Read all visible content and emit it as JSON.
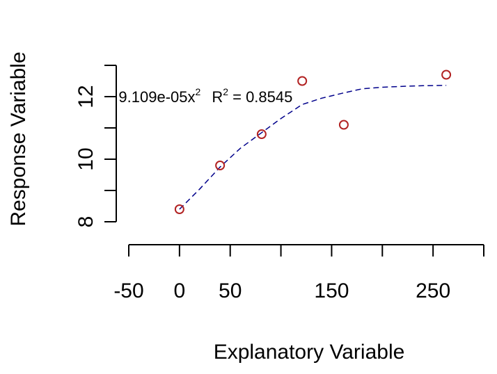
{
  "chart_data": {
    "type": "scatter",
    "xlabel": "Explanatory Variable",
    "ylabel": "Response Variable",
    "xlim": [
      -50,
      300
    ],
    "ylim": [
      7.0,
      13.0
    ],
    "x_ticks": [
      -50,
      0,
      50,
      100,
      150,
      200,
      250,
      300
    ],
    "x_tick_labels": [
      "-50",
      "0",
      "50",
      "",
      "150",
      "",
      "250",
      ""
    ],
    "y_ticks": [
      8,
      9,
      10,
      11,
      12,
      13
    ],
    "y_tick_labels": [
      "8",
      "",
      "10",
      "",
      "12",
      ""
    ],
    "points": [
      {
        "x": 0,
        "y": 8.4
      },
      {
        "x": 40,
        "y": 9.8
      },
      {
        "x": 81,
        "y": 10.8
      },
      {
        "x": 121,
        "y": 12.5
      },
      {
        "x": 162,
        "y": 11.1
      },
      {
        "x": 263,
        "y": 12.7
      }
    ],
    "fit_line": {
      "x": [
        0,
        20,
        40,
        60,
        81,
        100,
        121,
        140,
        162,
        180,
        200,
        220,
        240,
        263
      ],
      "y": [
        8.4,
        9.05,
        9.75,
        10.35,
        10.85,
        11.3,
        11.75,
        11.95,
        12.12,
        12.25,
        12.3,
        12.33,
        12.35,
        12.36
      ]
    },
    "annotation": {
      "prefix": "9.109e-05x",
      "exp1": "2",
      "r_label": "R",
      "exp2": "2",
      "value": " = 0.8545",
      "x": -60,
      "y": 12.0
    },
    "grid": false,
    "legend": "none"
  }
}
